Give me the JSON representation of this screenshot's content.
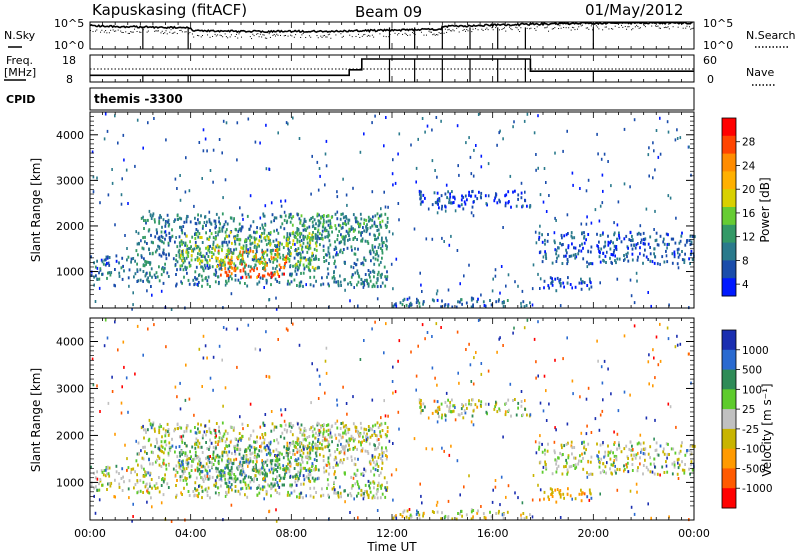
{
  "header": {
    "station": "Kapuskasing (fitACF)",
    "beam": "Beam 09",
    "date": "01/May/2012"
  },
  "nsky_panel": {
    "left_label": "N.Sky",
    "right_label": "N.Search",
    "ticks_left": [
      "10^5",
      "10^0"
    ],
    "ticks_right": [
      "10^5",
      "10^0"
    ]
  },
  "freq_panel": {
    "left_label_1": "Freq.",
    "left_label_2": "[MHz]",
    "right_label": "Nave",
    "ticks_left": [
      "18",
      "8"
    ],
    "ticks_right": [
      "60",
      "0"
    ]
  },
  "cpid": {
    "label": "CPID",
    "value": "themis -3300"
  },
  "power_panel": {
    "ylabel": "Slant Range [km]",
    "yticks": [
      "4000",
      "3000",
      "2000",
      "1000"
    ],
    "colorbar_label": "Power [dB]",
    "colorbar_ticks": [
      "28",
      "24",
      "20",
      "16",
      "12",
      "8",
      "4"
    ],
    "colorbar_colors": [
      "#ff0000",
      "#ff4400",
      "#ff8c00",
      "#ffb000",
      "#d9d000",
      "#66cc33",
      "#339966",
      "#2a7a8c",
      "#1a4dab",
      "#0019ff"
    ]
  },
  "velocity_panel": {
    "ylabel": "Slant Range [km]",
    "yticks": [
      "4000",
      "3000",
      "2000",
      "1000"
    ],
    "colorbar_label": "Velocity [m s⁻¹]",
    "colorbar_ticks": [
      "1000",
      "500",
      "100",
      "25",
      "-25",
      "-100",
      "-500",
      "-1000"
    ],
    "colorbar_colors": [
      "#1a2eb0",
      "#2a6ad0",
      "#2e8b57",
      "#5ecb2c",
      "#c0c0c0",
      "#c8b400",
      "#ff9a00",
      "#ff5a00",
      "#ff0000"
    ]
  },
  "xaxis": {
    "label": "Time UT",
    "ticks": [
      "00:00",
      "04:00",
      "08:00",
      "12:00",
      "16:00",
      "20:00",
      "00:00"
    ]
  },
  "chart_data": {
    "type": "heatmap",
    "title": "Kapuskasing (fitACF)   Beam 09   01/May/2012",
    "xlabel": "Time UT",
    "ylabel": "Slant Range [km]",
    "xlim": [
      0,
      24
    ],
    "ylim": [
      200,
      4500
    ],
    "nsky_ylim_log10": [
      0,
      5
    ],
    "nave_ylim": [
      0,
      60
    ],
    "freq_ylim": [
      8,
      18
    ],
    "freq_steps": [
      {
        "start": 0,
        "end": 10.3,
        "mhz": 10.5
      },
      {
        "start": 10.3,
        "end": 10.8,
        "mhz": 12.5
      },
      {
        "start": 10.8,
        "end": 17.5,
        "mhz": 16.5
      },
      {
        "start": 17.5,
        "end": 24,
        "mhz": 12.0
      }
    ],
    "power_ranges_db": [
      4,
      30
    ],
    "velocity_range_ms": [
      -1000,
      1000
    ],
    "scatter_regions": [
      {
        "name": "",
        "t0": 0.0,
        "t1": 1.8,
        "r0": 850,
        "r1": 1400,
        "power_db": 8,
        "velocity_ms": 0
      },
      {
        "name": "",
        "t0": 1.8,
        "t1": 11.8,
        "r0": 700,
        "r1": 2300,
        "power_db": 10,
        "velocity_ms": 0
      },
      {
        "name": "",
        "t0": 5.0,
        "t1": 7.8,
        "r0": 900,
        "r1": 1500,
        "power_db": 26,
        "velocity_ms": 60
      },
      {
        "name": "",
        "t0": 3.5,
        "t1": 9.0,
        "r0": 1100,
        "r1": 1900,
        "power_db": 16,
        "velocity_ms": 60
      },
      {
        "name": "",
        "t0": 8.0,
        "t1": 11.8,
        "r0": 1700,
        "r1": 2300,
        "power_db": 12,
        "velocity_ms": 0
      },
      {
        "name": "",
        "t0": 13.0,
        "t1": 17.5,
        "r0": 2400,
        "r1": 2800,
        "power_db": 6,
        "velocity_ms": 0
      },
      {
        "name": "",
        "t0": 12.0,
        "t1": 17.5,
        "r0": 250,
        "r1": 450,
        "power_db": 8,
        "velocity_ms": 0
      },
      {
        "name": "",
        "t0": 17.8,
        "t1": 24.0,
        "r0": 1200,
        "r1": 1900,
        "power_db": 7,
        "velocity_ms": 0
      },
      {
        "name": "",
        "t0": 17.8,
        "t1": 20.0,
        "r0": 600,
        "r1": 900,
        "power_db": 6,
        "velocity_ms": -100
      }
    ]
  }
}
